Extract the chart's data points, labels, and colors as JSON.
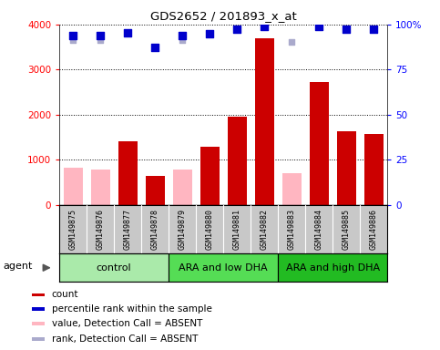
{
  "title": "GDS2652 / 201893_x_at",
  "samples": [
    "GSM149875",
    "GSM149876",
    "GSM149877",
    "GSM149878",
    "GSM149879",
    "GSM149880",
    "GSM149881",
    "GSM149882",
    "GSM149883",
    "GSM149884",
    "GSM149885",
    "GSM149886"
  ],
  "count_values": [
    null,
    null,
    1400,
    650,
    null,
    1280,
    1950,
    3700,
    null,
    2720,
    1630,
    1570
  ],
  "absent_value_bars": [
    820,
    780,
    null,
    null,
    780,
    null,
    null,
    null,
    710,
    null,
    null,
    null
  ],
  "percentile_rank_pct": [
    93.8,
    93.8,
    95.5,
    87.3,
    93.8,
    95.0,
    97.5,
    98.8,
    null,
    98.8,
    97.5,
    97.5
  ],
  "absent_rank_pct": [
    91.3,
    91.3,
    null,
    null,
    91.3,
    null,
    null,
    null,
    90.5,
    null,
    null,
    null
  ],
  "groups": [
    {
      "label": "control",
      "start": 0,
      "end": 4,
      "color": "#AAEAAA"
    },
    {
      "label": "ARA and low DHA",
      "start": 4,
      "end": 8,
      "color": "#55DD55"
    },
    {
      "label": "ARA and high DHA",
      "start": 8,
      "end": 12,
      "color": "#22BB22"
    }
  ],
  "ylim_left": [
    0,
    4000
  ],
  "ylim_right": [
    0,
    100
  ],
  "yticks_left": [
    0,
    1000,
    2000,
    3000,
    4000
  ],
  "yticks_right": [
    0,
    25,
    50,
    75,
    100
  ],
  "bar_color_red": "#CC0000",
  "bar_color_pink": "#FFB6C1",
  "dot_color_blue": "#0000CC",
  "dot_color_lavender": "#AAAACC",
  "agent_label": "agent",
  "legend_items": [
    {
      "color": "#CC0000",
      "label": "count"
    },
    {
      "color": "#0000CC",
      "label": "percentile rank within the sample"
    },
    {
      "color": "#FFB6C1",
      "label": "value, Detection Call = ABSENT"
    },
    {
      "color": "#AAAACC",
      "label": "rank, Detection Call = ABSENT"
    }
  ],
  "sample_area_color": "#C8C8C8",
  "plot_bg_color": "#FFFFFF",
  "fig_width": 4.83,
  "fig_height": 3.84,
  "dpi": 100
}
